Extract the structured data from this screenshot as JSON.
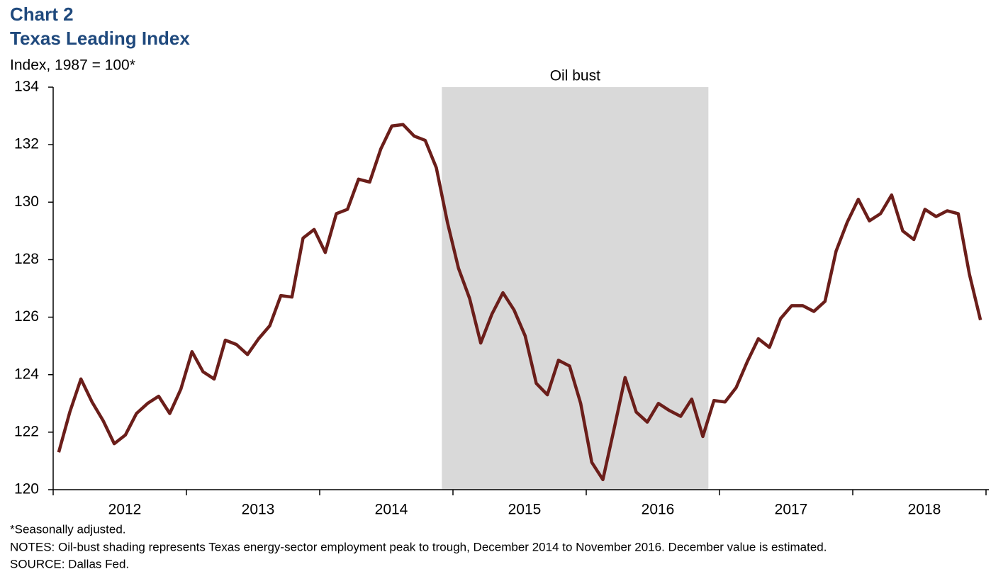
{
  "chart_data": {
    "type": "line",
    "title": "Chart 2",
    "subtitle": "Texas Leading Index",
    "y_axis_label": "Index, 1987 = 100*",
    "categories": [
      null,
      null,
      null,
      null,
      null,
      null,
      "2012",
      null,
      null,
      null,
      null,
      null,
      null,
      null,
      null,
      null,
      null,
      null,
      "2013",
      null,
      null,
      null,
      null,
      null,
      null,
      null,
      null,
      null,
      null,
      null,
      "2014",
      null,
      null,
      null,
      null,
      null,
      null,
      null,
      null,
      null,
      null,
      null,
      "2015",
      null,
      null,
      null,
      null,
      null,
      null,
      null,
      null,
      null,
      null,
      null,
      "2016",
      null,
      null,
      null,
      null,
      null,
      null,
      null,
      null,
      null,
      null,
      null,
      "2017",
      null,
      null,
      null,
      null,
      null,
      null,
      null,
      null,
      null,
      null,
      null,
      "2018",
      null,
      null,
      null,
      null,
      null
    ],
    "series": [
      {
        "name": "Texas Leading Index",
        "color": "#6b1e1a",
        "values": [
          121.3,
          122.7,
          123.85,
          123.05,
          122.4,
          121.6,
          121.9,
          122.65,
          123.0,
          123.25,
          122.65,
          123.5,
          124.8,
          124.1,
          123.85,
          125.2,
          125.05,
          124.7,
          125.25,
          125.7,
          126.75,
          126.7,
          128.75,
          129.05,
          128.25,
          129.6,
          129.75,
          130.8,
          130.7,
          131.85,
          132.65,
          132.7,
          132.3,
          132.15,
          131.2,
          129.3,
          127.7,
          126.65,
          125.1,
          126.1,
          126.85,
          126.25,
          125.35,
          123.7,
          123.3,
          124.5,
          124.3,
          123.0,
          120.95,
          120.35,
          122.1,
          123.9,
          122.7,
          122.35,
          123.0,
          122.75,
          122.55,
          123.15,
          121.85,
          123.1,
          123.05,
          123.55,
          124.45,
          125.25,
          124.95,
          125.95,
          126.4,
          126.4,
          126.2,
          126.55,
          128.3,
          129.3,
          130.1,
          129.35,
          129.6,
          130.25,
          129.0,
          128.7,
          129.75,
          129.5,
          129.7,
          129.6,
          127.5,
          125.9
        ]
      }
    ],
    "shade": {
      "label": "Oil bust",
      "start": 35,
      "end": 58,
      "color": "#d9d9d9"
    },
    "ylim": [
      120,
      134
    ],
    "yticks": [
      120,
      122,
      124,
      126,
      128,
      130,
      132,
      134
    ],
    "grid": false,
    "notes": [
      "*Seasonally adjusted.",
      "NOTES: Oil-bust shading represents Texas energy-sector employment peak to trough, December 2014 to November 2016. December value is estimated.",
      "SOURCE: Dallas Fed."
    ]
  }
}
